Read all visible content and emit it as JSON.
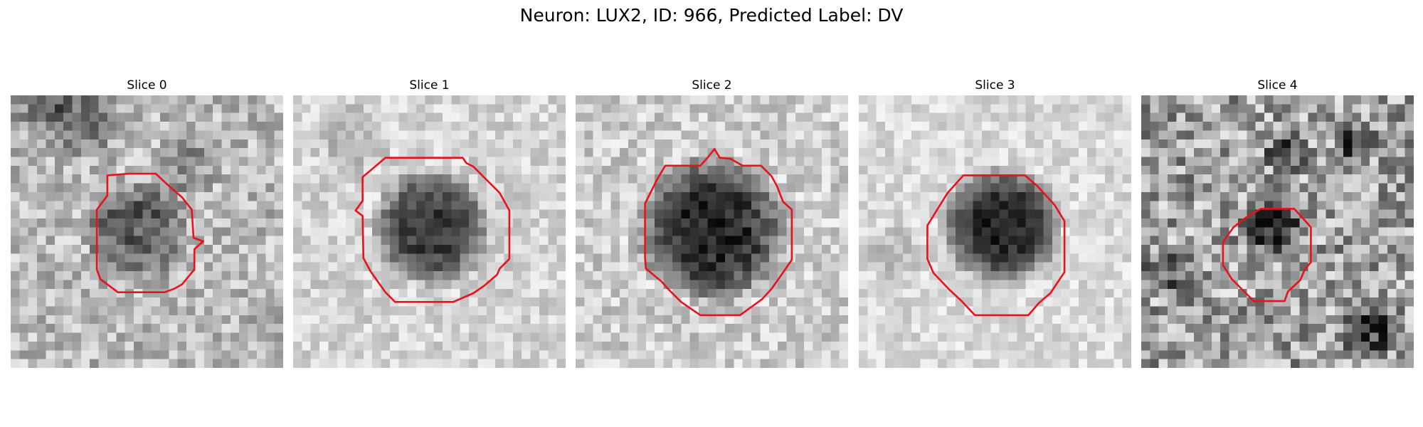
{
  "figure": {
    "title": "Neuron: LUX2, ID: 966, Predicted Label: DV"
  },
  "colors": {
    "contour": "#e8121c",
    "background": "#ffffff",
    "colormap": "grayscale"
  },
  "slices": [
    {
      "label": "Slice 0"
    },
    {
      "label": "Slice 1"
    },
    {
      "label": "Slice 2"
    },
    {
      "label": "Slice 3"
    },
    {
      "label": "Slice 4"
    }
  ]
}
